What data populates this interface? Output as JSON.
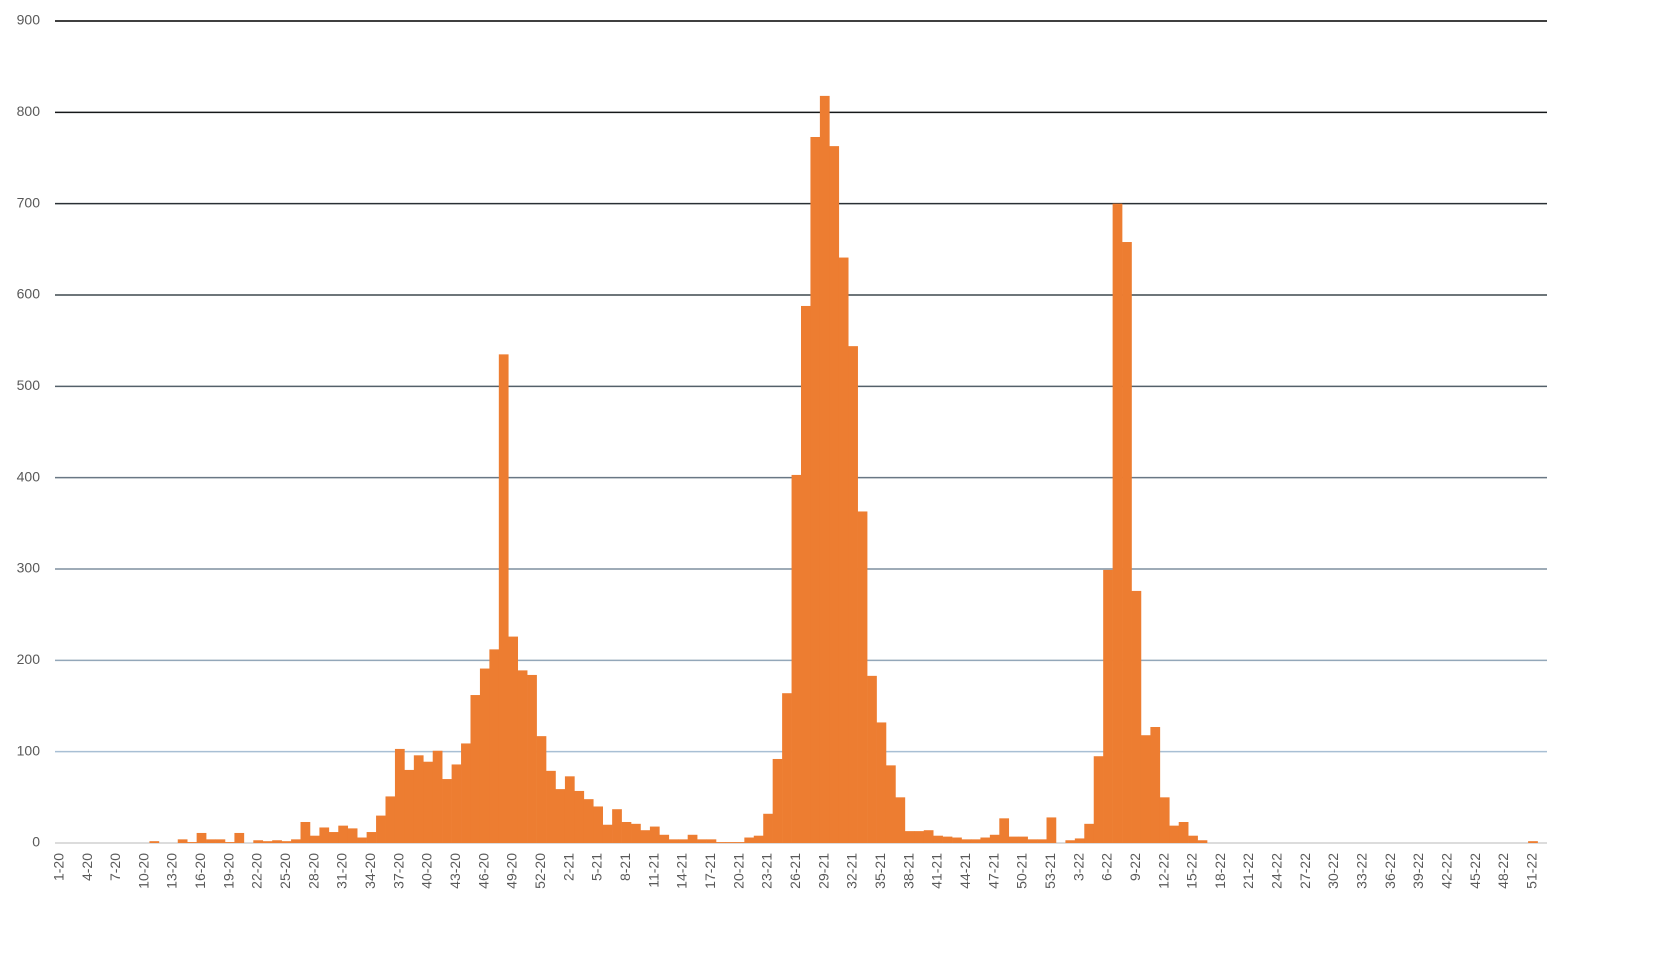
{
  "chart_data": {
    "type": "bar",
    "color": "#ed7d31",
    "grid": true,
    "ylim": [
      0,
      900
    ],
    "yticks": [
      0,
      100,
      200,
      300,
      400,
      500,
      600,
      700,
      800,
      900
    ],
    "categories": [
      "1-20",
      null,
      null,
      "4-20",
      null,
      null,
      "7-20",
      null,
      null,
      "10-20",
      null,
      null,
      "13-20",
      null,
      null,
      "16-20",
      null,
      null,
      "19-20",
      null,
      null,
      "22-20",
      null,
      null,
      "25-20",
      null,
      null,
      "28-20",
      null,
      null,
      "31-20",
      null,
      null,
      "34-20",
      null,
      null,
      "37-20",
      null,
      null,
      "40-20",
      null,
      null,
      "43-20",
      null,
      null,
      "46-20",
      null,
      null,
      "49-20",
      null,
      null,
      "52-20",
      null,
      null,
      "2-21",
      null,
      null,
      "5-21",
      null,
      null,
      "8-21",
      null,
      null,
      "11-21",
      null,
      null,
      "14-21",
      null,
      null,
      "17-21",
      null,
      null,
      "20-21",
      null,
      null,
      "23-21",
      null,
      null,
      "26-21",
      null,
      null,
      "29-21",
      null,
      null,
      "32-21",
      null,
      null,
      "35-21",
      null,
      null,
      "38-21",
      null,
      null,
      "41-21",
      null,
      null,
      "44-21",
      null,
      null,
      "47-21",
      null,
      null,
      "50-21",
      null,
      null,
      "53-21",
      null,
      null,
      "3-22",
      null,
      null,
      "6-22",
      null,
      null,
      "9-22",
      null,
      null,
      "12-22",
      null,
      null,
      "15-22",
      null,
      null,
      "18-22",
      null,
      null,
      "21-22",
      null,
      null,
      "24-22",
      null,
      null,
      "27-22",
      null,
      null,
      "30-22",
      null,
      null,
      "33-22",
      null,
      null,
      "36-22",
      null,
      null,
      "39-22",
      null,
      null,
      "42-22",
      null,
      null,
      "45-22",
      null,
      null,
      "48-22",
      null,
      null,
      "51-22",
      null
    ],
    "values": [
      0,
      0,
      0,
      0,
      0,
      0,
      0,
      0,
      0,
      0,
      2,
      0,
      0,
      4,
      1,
      11,
      4,
      4,
      1,
      11,
      0,
      3,
      2,
      3,
      2,
      4,
      23,
      8,
      17,
      12,
      19,
      16,
      6,
      12,
      30,
      51,
      103,
      80,
      96,
      89,
      101,
      70,
      86,
      109,
      162,
      191,
      212,
      535,
      226,
      189,
      184,
      117,
      79,
      59,
      73,
      57,
      48,
      40,
      20,
      37,
      23,
      21,
      14,
      18,
      9,
      4,
      4,
      9,
      4,
      4,
      1,
      1,
      1,
      6,
      8,
      32,
      92,
      164,
      403,
      588,
      773,
      818,
      763,
      641,
      544,
      363,
      183,
      132,
      85,
      50,
      13,
      13,
      14,
      8,
      7,
      6,
      4,
      4,
      6,
      9,
      27,
      7,
      7,
      4,
      4,
      28,
      0,
      3,
      5,
      21,
      95,
      299,
      700,
      658,
      276,
      118,
      127,
      50,
      19,
      23,
      8,
      3,
      0,
      0,
      0,
      0,
      0,
      0,
      0,
      0,
      0,
      0,
      0,
      0,
      0,
      0,
      0,
      0,
      0,
      0,
      0,
      0,
      0,
      0,
      0,
      0,
      0,
      0,
      0,
      0,
      0,
      0,
      0,
      0,
      0,
      0,
      2,
      0
    ]
  }
}
